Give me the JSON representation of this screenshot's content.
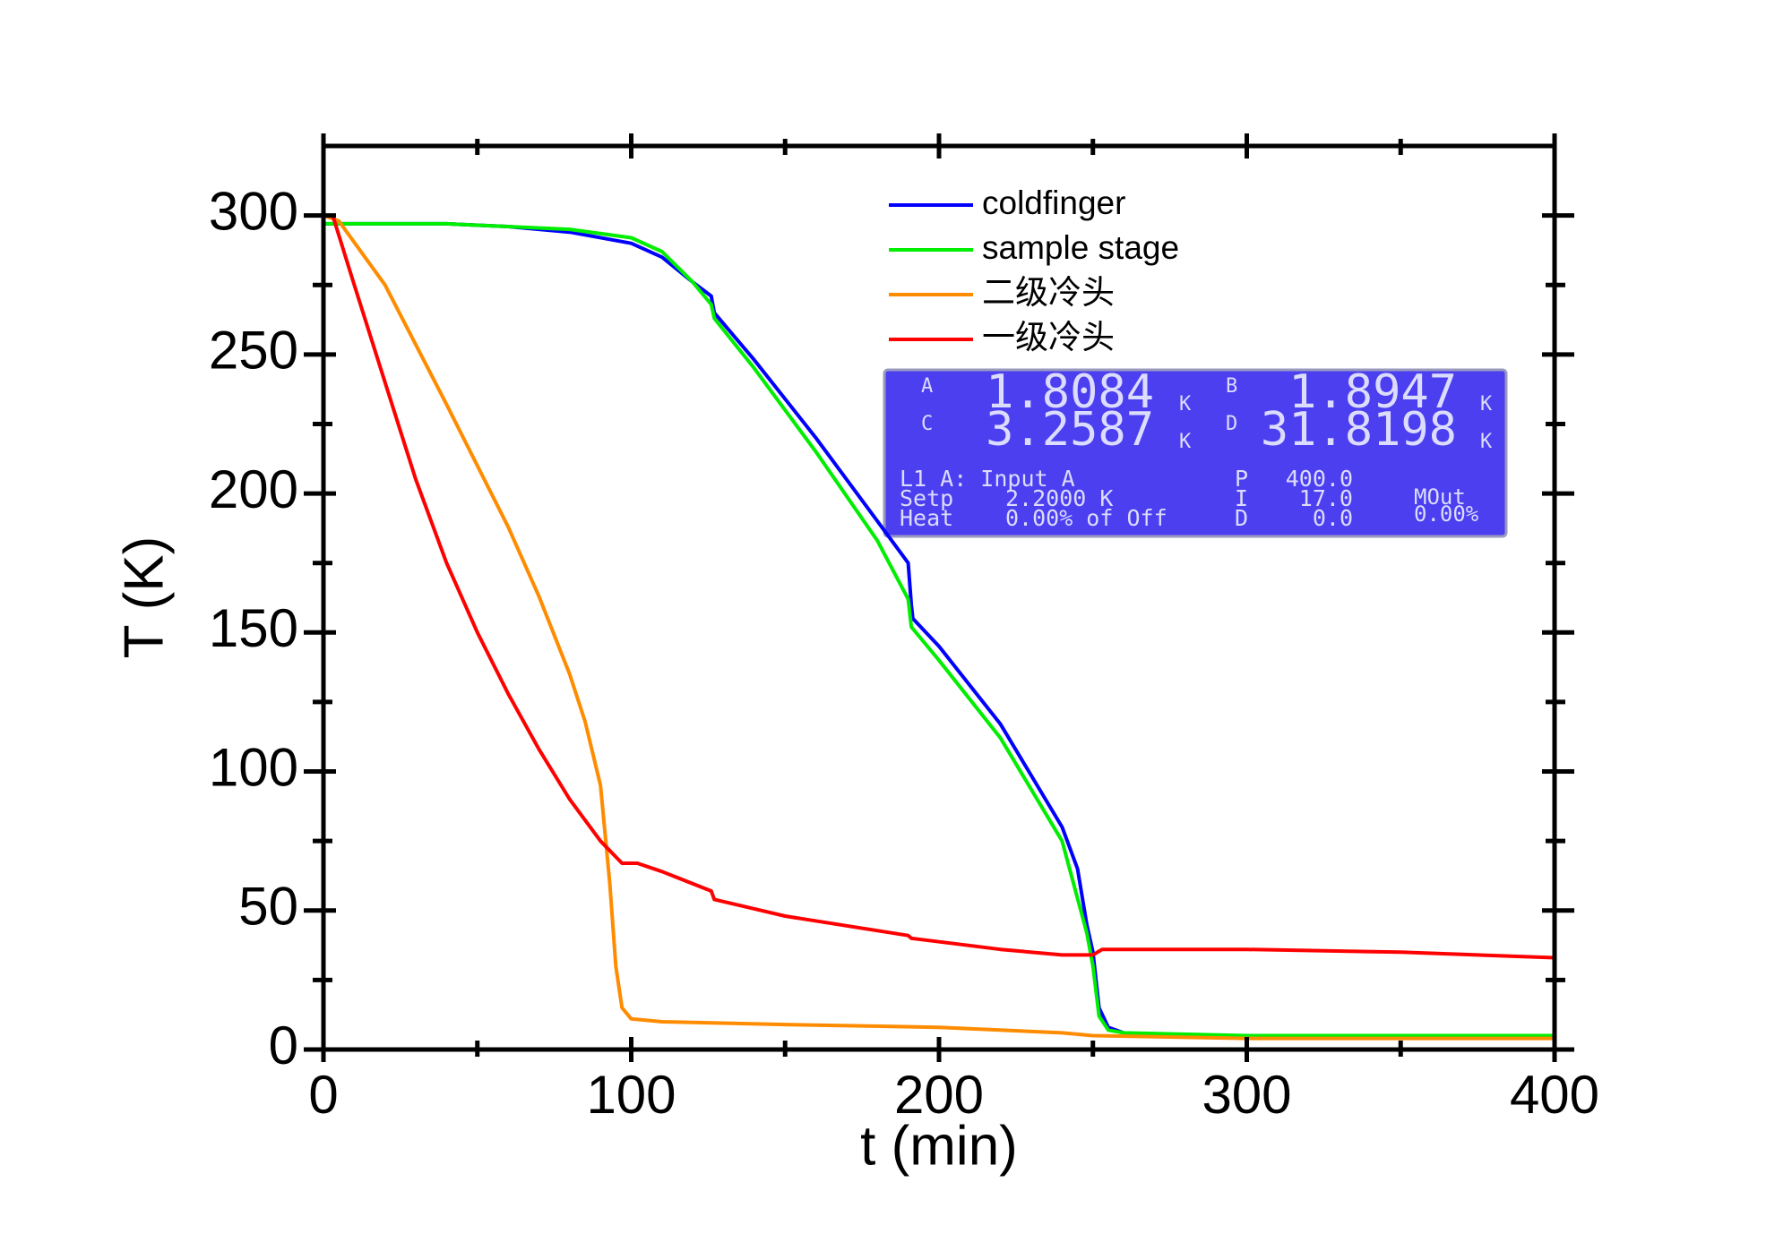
{
  "chart_data": {
    "type": "line",
    "xlabel": "t (min)",
    "ylabel": "T (K)",
    "xlim": [
      0,
      400
    ],
    "ylim": [
      0,
      325
    ],
    "xticks": [
      0,
      100,
      200,
      300,
      400
    ],
    "yticks": [
      0,
      50,
      100,
      150,
      200,
      250,
      300
    ],
    "xminorticks": [
      50,
      150,
      250,
      350
    ],
    "yminorticks": [
      25,
      75,
      125,
      175,
      225,
      275
    ],
    "legend": "upper-right",
    "series": [
      {
        "name": "coldfinger",
        "color": "#0000ff",
        "x": [
          0,
          20,
          40,
          60,
          80,
          100,
          110,
          120,
          126,
          127,
          140,
          160,
          180,
          190,
          191,
          191.5,
          200,
          220,
          240,
          245,
          248,
          250,
          252,
          255,
          260,
          273,
          300,
          350,
          400
        ],
        "values": [
          297,
          297,
          297,
          296,
          294,
          290,
          285,
          276,
          271,
          265,
          248,
          220,
          190,
          175,
          160,
          155,
          145,
          117,
          80,
          65,
          45,
          35,
          15,
          8,
          6,
          5,
          5,
          5,
          5
        ]
      },
      {
        "name": "sample stage",
        "color": "#00ee00",
        "x": [
          0,
          40,
          80,
          100,
          110,
          120,
          126,
          127,
          140,
          160,
          180,
          190,
          191,
          200,
          220,
          240,
          248,
          250,
          252,
          255,
          260,
          300,
          350,
          400
        ],
        "values": [
          297,
          297,
          295,
          292,
          287,
          276,
          268,
          263,
          245,
          215,
          183,
          162,
          152,
          140,
          112,
          75,
          42,
          30,
          12,
          7,
          6,
          5,
          5,
          5
        ]
      },
      {
        "name": "二级冷头",
        "color": "#ff8c00",
        "x": [
          0,
          5,
          20,
          40,
          60,
          70,
          80,
          85,
          90,
          93,
          95,
          97,
          100,
          110,
          150,
          200,
          240,
          250,
          300,
          400
        ],
        "values": [
          300,
          298,
          275,
          232,
          188,
          163,
          135,
          118,
          95,
          60,
          30,
          15,
          11,
          10,
          9,
          8,
          6,
          5,
          4,
          4
        ]
      },
      {
        "name": "一级冷头",
        "color": "#ff0000",
        "x": [
          0,
          3,
          10,
          20,
          30,
          40,
          50,
          60,
          70,
          80,
          90,
          97,
          102,
          110,
          126,
          127,
          150,
          190,
          191,
          220,
          240,
          250,
          253,
          300,
          350,
          400
        ],
        "values": [
          300,
          300,
          275,
          240,
          205,
          175,
          150,
          128,
          108,
          90,
          75,
          67,
          67,
          64,
          57,
          54,
          48,
          41,
          40,
          36,
          34,
          34,
          36,
          36,
          35,
          33
        ]
      }
    ]
  },
  "inset": {
    "lines": [
      "A",
      "1.8084",
      "K",
      "B",
      "1.8947",
      "K",
      "C",
      "3.2587",
      "K",
      "D",
      "31.8198",
      "K",
      "L1 A: Input A",
      "Setp",
      "2.2000 K",
      "Heat",
      "0.00% of Off",
      "P",
      "400.0",
      "I",
      "17.0",
      "D",
      "0.0",
      "MOut",
      "0.00%"
    ]
  }
}
